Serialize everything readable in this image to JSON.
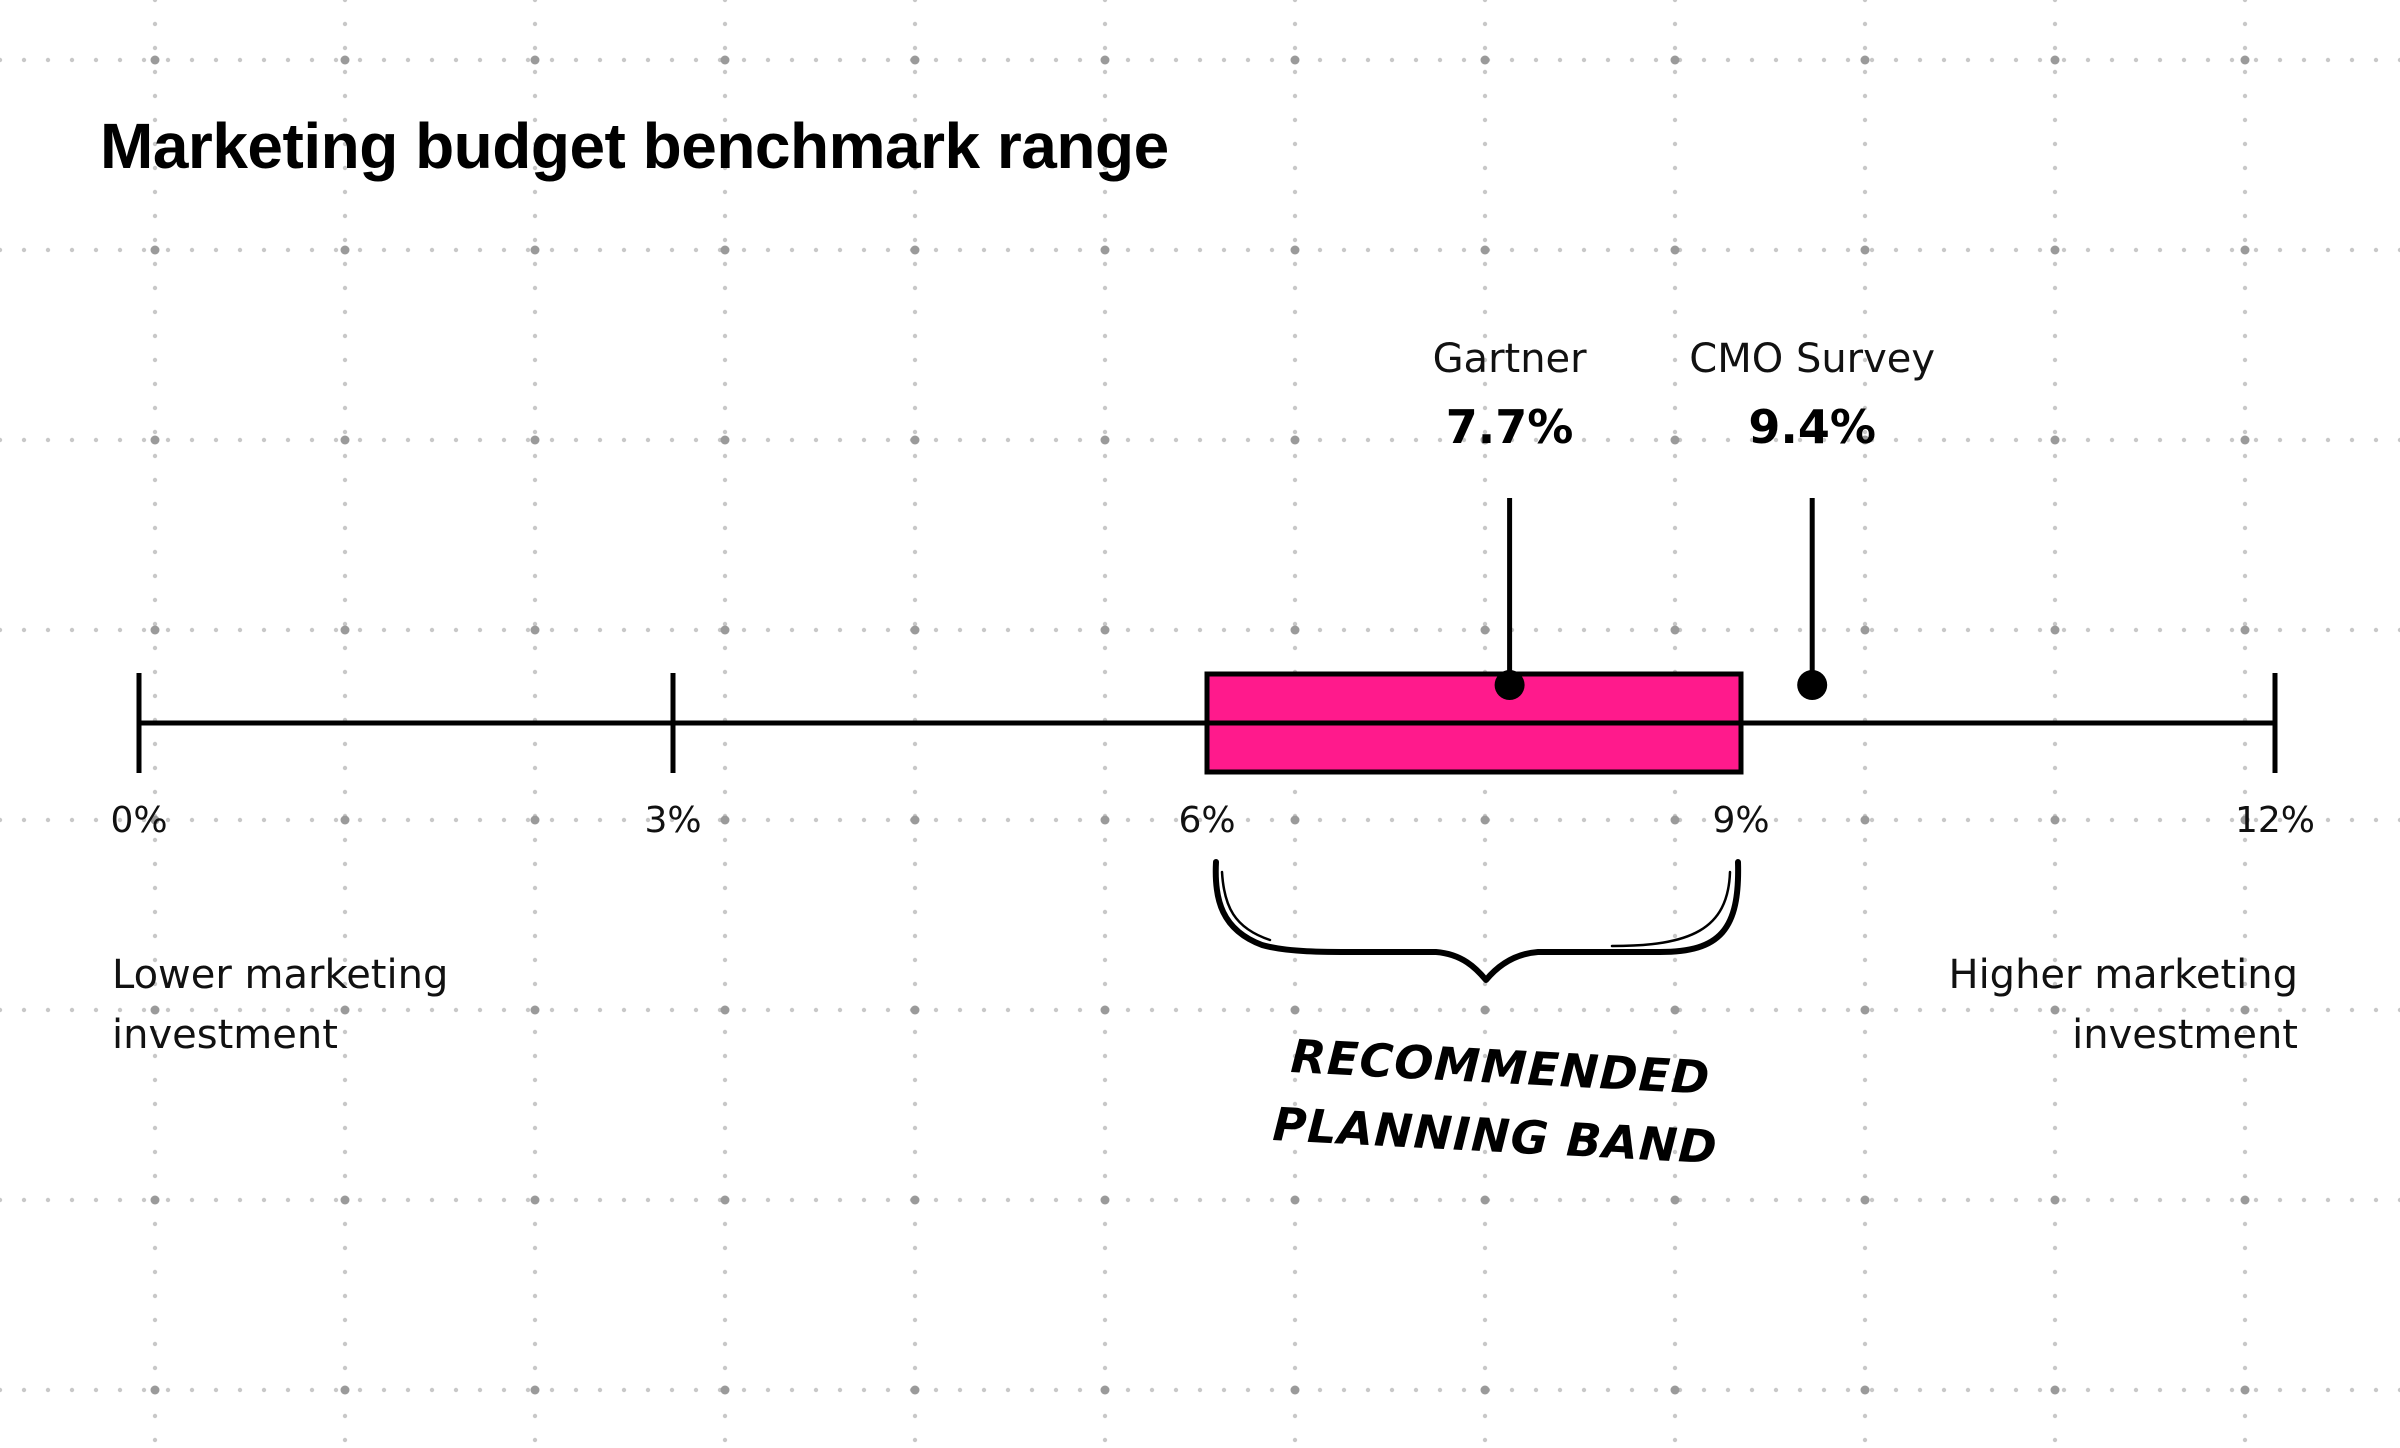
{
  "chart_data": {
    "type": "range",
    "title": "Marketing budget benchmark range",
    "xlim": [
      0,
      12
    ],
    "ticks": [
      0,
      3,
      6,
      9,
      12
    ],
    "tick_labels": [
      "0%",
      "3%",
      "6%",
      "9%",
      "12%"
    ],
    "band": {
      "from": 6,
      "to": 9,
      "color": "#ff1a8c"
    },
    "markers": [
      {
        "name": "Gartner",
        "value": 7.7,
        "label": "7.7%"
      },
      {
        "name": "CMO Survey",
        "value": 9.4,
        "label": "9.4%"
      }
    ],
    "left_label": [
      "Lower marketing",
      "investment"
    ],
    "right_label": [
      "Higher marketing",
      "investment"
    ],
    "annotation": [
      "RECOMMENDED",
      "PLANNING BAND"
    ],
    "grid": "dotted"
  }
}
